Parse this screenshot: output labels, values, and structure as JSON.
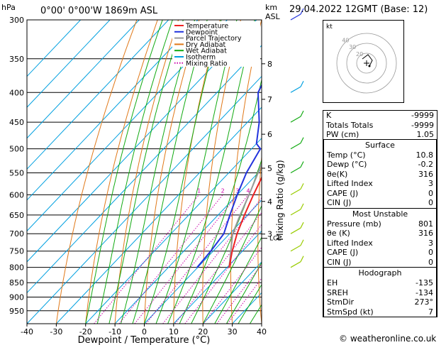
{
  "header": {
    "unit_hpa": "hPa",
    "location": "0°00' 0°00'W  1869m  ASL",
    "unit_km": "km",
    "unit_asl": "ASL",
    "datetime": "29.04.2022  12GMT  (Base: 12)"
  },
  "credit": "© weatheronline.co.uk",
  "chart_data": {
    "type": "line",
    "xlabel": "Dewpoint / Temperature (°C)",
    "ylabel_right": "Mixing Ratio (g/kg)",
    "x_ticks": [
      -40,
      -30,
      -20,
      -10,
      0,
      10,
      20,
      30,
      40
    ],
    "pressure_ticks": [
      300,
      350,
      400,
      450,
      500,
      550,
      600,
      650,
      700,
      750,
      800,
      850,
      900,
      950
    ],
    "xlim": [
      -40,
      40
    ],
    "plim": [
      300,
      1000
    ],
    "lcl_label": "LCL",
    "km_ticks": [
      {
        "km": "8",
        "p": 357
      },
      {
        "km": "7",
        "p": 411
      },
      {
        "km": "6",
        "p": 472
      },
      {
        "km": "5",
        "p": 540
      },
      {
        "km": "4",
        "p": 616
      },
      {
        "km": "3",
        "p": 701
      }
    ],
    "mixing_ratio_labels": [
      "1",
      "2",
      "3",
      "4",
      "6",
      "8",
      "10",
      "15",
      "20",
      "25"
    ],
    "mixing_ratios": [
      1,
      2,
      3,
      4,
      6,
      8,
      10,
      15,
      20,
      25
    ],
    "legend": [
      {
        "name": "Temperature",
        "color": "#ee2222",
        "style": "solid"
      },
      {
        "name": "Dewpoint",
        "color": "#2233dd",
        "style": "solid"
      },
      {
        "name": "Parcel Trajectory",
        "color": "#999999",
        "style": "solid"
      },
      {
        "name": "Dry Adiabat",
        "color": "#e07818",
        "style": "solid"
      },
      {
        "name": "Wet Adiabat",
        "color": "#11aa11",
        "style": "solid"
      },
      {
        "name": "Isotherm",
        "color": "#00a0e0",
        "style": "solid"
      },
      {
        "name": "Mixing Ratio",
        "color": "#cc00aa",
        "style": "dotted"
      }
    ],
    "temperature": [
      {
        "p": 801,
        "t": 10.8
      },
      {
        "p": 750,
        "t": 6.5
      },
      {
        "p": 700,
        "t": 2.5
      },
      {
        "p": 650,
        "t": -1.0
      },
      {
        "p": 600,
        "t": -4.5
      },
      {
        "p": 550,
        "t": -8.0
      },
      {
        "p": 500,
        "t": -12.5
      },
      {
        "p": 450,
        "t": -17.5
      },
      {
        "p": 400,
        "t": -23.0
      },
      {
        "p": 350,
        "t": -30.0
      },
      {
        "p": 300,
        "t": -38.0
      }
    ],
    "dewpoint": [
      {
        "p": 801,
        "t": -0.2
      },
      {
        "p": 750,
        "t": -0.8
      },
      {
        "p": 700,
        "t": -2.0
      },
      {
        "p": 650,
        "t": -6.0
      },
      {
        "p": 600,
        "t": -10.0
      },
      {
        "p": 550,
        "t": -14.0
      },
      {
        "p": 500,
        "t": -17.0
      },
      {
        "p": 490,
        "t": -20.0
      },
      {
        "p": 450,
        "t": -26.0
      },
      {
        "p": 400,
        "t": -36.0
      },
      {
        "p": 380,
        "t": -38.0
      },
      {
        "p": 350,
        "t": -40.0
      },
      {
        "p": 300,
        "t": -47.0
      }
    ],
    "parcel": [
      {
        "p": 801,
        "t": 10.8
      },
      {
        "p": 700,
        "t": 1.0
      },
      {
        "p": 650,
        "t": -2.5
      },
      {
        "p": 600,
        "t": -6.0
      },
      {
        "p": 550,
        "t": -10.0
      },
      {
        "p": 500,
        "t": -14.5
      },
      {
        "p": 450,
        "t": -20.0
      },
      {
        "p": 400,
        "t": -27.0
      },
      {
        "p": 350,
        "t": -35.0
      },
      {
        "p": 300,
        "t": -44.0
      }
    ],
    "winds": [
      {
        "p": 300,
        "color": "#2233dd"
      },
      {
        "p": 400,
        "color": "#00a0e0"
      },
      {
        "p": 450,
        "color": "#11aa11"
      },
      {
        "p": 500,
        "color": "#11aa11"
      },
      {
        "p": 550,
        "color": "#11aa11"
      },
      {
        "p": 600,
        "color": "#99cc00"
      },
      {
        "p": 650,
        "color": "#99cc00"
      },
      {
        "p": 700,
        "color": "#99cc00"
      },
      {
        "p": 750,
        "color": "#99cc00"
      },
      {
        "p": 800,
        "color": "#99cc00"
      }
    ],
    "hodograph": {
      "label": "kt",
      "ring_labels": [
        "40",
        "30",
        "20"
      ]
    }
  },
  "indices": [
    {
      "label": "K",
      "value": "-9999"
    },
    {
      "label": "Totals Totals",
      "value": "-9999"
    },
    {
      "label": "PW (cm)",
      "value": "1.05"
    }
  ],
  "surface": {
    "title": "Surface",
    "rows": [
      {
        "label": "Temp (°C)",
        "value": "10.8"
      },
      {
        "label": "Dewp (°C)",
        "value": "-0.2"
      },
      {
        "label": "θe(K)",
        "value": "316"
      },
      {
        "label": "Lifted Index",
        "value": "3"
      },
      {
        "label": "CAPE (J)",
        "value": "0"
      },
      {
        "label": "CIN (J)",
        "value": "0"
      }
    ]
  },
  "unstable": {
    "title": "Most Unstable",
    "rows": [
      {
        "label": "Pressure (mb)",
        "value": "801"
      },
      {
        "label": "θe (K)",
        "value": "316"
      },
      {
        "label": "Lifted Index",
        "value": "3"
      },
      {
        "label": "CAPE (J)",
        "value": "0"
      },
      {
        "label": "CIN (J)",
        "value": "0"
      }
    ]
  },
  "hodograph_table": {
    "title": "Hodograph",
    "rows": [
      {
        "label": "EH",
        "value": "-135"
      },
      {
        "label": "SREH",
        "value": "-134"
      },
      {
        "label": "StmDir",
        "value": "273°"
      },
      {
        "label": "StmSpd (kt)",
        "value": "7"
      }
    ]
  }
}
